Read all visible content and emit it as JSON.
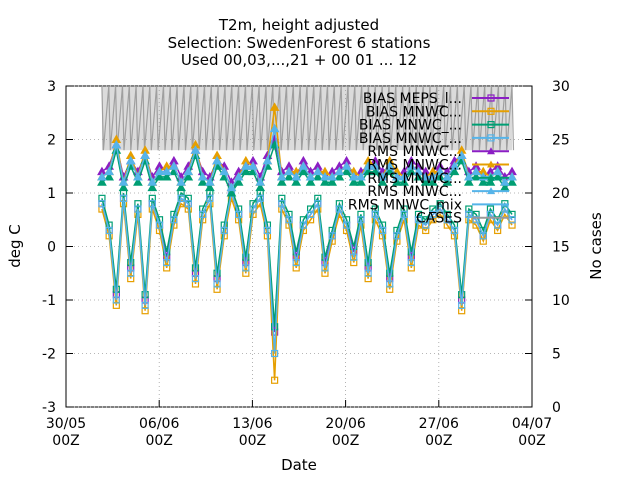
{
  "chart_data": {
    "type": "line",
    "title_lines": [
      "T2m, height adjusted",
      "Selection: SwedenForest      6 stations",
      "Used 00,03,...,21 + 00 01 ... 12"
    ],
    "xlabel": "Date",
    "ylabel": "deg C",
    "y2label": "No cases",
    "xlim": [
      0,
      35
    ],
    "ylim": [
      -3,
      3
    ],
    "y2lim": [
      0,
      30
    ],
    "yticks": [
      "3",
      "2",
      "1",
      "0",
      "-1",
      "-2",
      "-3"
    ],
    "y2ticks": [
      "30",
      "25",
      "20",
      "15",
      "10",
      "5",
      "0"
    ],
    "xticks": [
      {
        "pos": 0,
        "l1": "30/05",
        "l2": "00Z"
      },
      {
        "pos": 7,
        "l1": "06/06",
        "l2": "00Z"
      },
      {
        "pos": 14,
        "l1": "13/06",
        "l2": "00Z"
      },
      {
        "pos": 21,
        "l1": "20/06",
        "l2": "00Z"
      },
      {
        "pos": 28,
        "l1": "27/06",
        "l2": "00Z"
      },
      {
        "pos": 35,
        "l1": "04/07",
        "l2": "00Z"
      }
    ],
    "grid": true,
    "legend_position": "top-right",
    "series": [
      {
        "name": "BIAS MEPS_l...",
        "color": "#8b1ec4",
        "marker": "square",
        "rms": false,
        "values": [
          0.8,
          0.3,
          -0.9,
          0.9,
          -0.4,
          0.7,
          -1.0,
          0.8,
          0.4,
          -0.2,
          0.5,
          0.9,
          0.8,
          -0.5,
          0.6,
          0.9,
          -0.6,
          0.3,
          1.0,
          0.6,
          -0.3,
          0.7,
          0.9,
          0.3,
          -1.6,
          0.8,
          0.5,
          -0.2,
          0.4,
          0.6,
          0.8,
          -0.3,
          0.2,
          0.7,
          0.4,
          -0.1,
          0.5,
          -0.4,
          0.6,
          0.3,
          -0.6,
          0.2,
          0.6,
          -0.2,
          0.5,
          0.4,
          0.6,
          0.7,
          0.5,
          0.3,
          -1.0,
          0.6,
          0.5,
          0.2,
          0.6,
          0.4,
          0.7,
          0.5
        ]
      },
      {
        "name": "BIAS MNWC...",
        "color": "#e69f00",
        "marker": "square",
        "rms": false,
        "values": [
          0.7,
          0.2,
          -1.1,
          0.8,
          -0.6,
          0.6,
          -1.2,
          0.7,
          0.3,
          -0.4,
          0.4,
          0.8,
          0.7,
          -0.7,
          0.5,
          0.8,
          -0.8,
          0.2,
          0.9,
          0.5,
          -0.5,
          0.6,
          0.8,
          0.2,
          -2.5,
          0.7,
          0.4,
          -0.4,
          0.3,
          0.5,
          0.7,
          -0.5,
          0.1,
          0.6,
          0.3,
          -0.3,
          0.4,
          -0.6,
          0.5,
          0.2,
          -0.8,
          0.1,
          0.5,
          -0.4,
          0.4,
          0.3,
          0.5,
          0.6,
          0.4,
          0.2,
          -1.2,
          0.5,
          0.4,
          0.1,
          0.5,
          0.3,
          0.6,
          0.4
        ]
      },
      {
        "name": "BIAS MNWC_...",
        "color": "#009e73",
        "marker": "square",
        "rms": false,
        "values": [
          0.9,
          0.4,
          -0.8,
          1.0,
          -0.3,
          0.8,
          -0.9,
          0.9,
          0.5,
          -0.1,
          0.6,
          1.0,
          0.9,
          -0.4,
          0.7,
          1.0,
          -0.5,
          0.4,
          1.1,
          0.7,
          -0.2,
          0.8,
          1.0,
          0.4,
          -1.5,
          0.9,
          0.6,
          -0.1,
          0.5,
          0.7,
          0.9,
          -0.2,
          0.3,
          0.8,
          0.5,
          0.0,
          0.6,
          -0.3,
          0.7,
          0.4,
          -0.5,
          0.3,
          0.7,
          -0.1,
          0.6,
          0.5,
          0.7,
          0.8,
          0.6,
          0.4,
          -0.9,
          0.7,
          0.6,
          0.3,
          0.7,
          0.5,
          0.8,
          0.6
        ]
      },
      {
        "name": "BIAS MNWC_...",
        "color": "#56b4e9",
        "marker": "square",
        "rms": false,
        "values": [
          0.8,
          0.3,
          -1.0,
          0.9,
          -0.5,
          0.7,
          -1.1,
          0.8,
          0.4,
          -0.3,
          0.5,
          0.9,
          0.8,
          -0.6,
          0.6,
          0.9,
          -0.7,
          0.3,
          1.0,
          0.6,
          -0.4,
          0.7,
          0.9,
          0.3,
          -2.0,
          0.8,
          0.5,
          -0.3,
          0.4,
          0.6,
          0.8,
          -0.4,
          0.2,
          0.7,
          0.4,
          -0.2,
          0.5,
          -0.5,
          0.6,
          0.3,
          -0.7,
          0.2,
          0.6,
          -0.3,
          0.5,
          0.4,
          0.6,
          0.7,
          0.5,
          0.3,
          -1.1,
          0.6,
          0.5,
          0.2,
          0.6,
          0.4,
          0.7,
          0.5
        ]
      },
      {
        "name": "RMS MNWC...",
        "color": "#8b1ec4",
        "marker": "triangle",
        "rms": true,
        "values": [
          1.4,
          1.5,
          1.9,
          1.3,
          1.6,
          1.4,
          1.7,
          1.3,
          1.5,
          1.4,
          1.6,
          1.3,
          1.5,
          1.8,
          1.4,
          1.3,
          1.6,
          1.5,
          1.2,
          1.4,
          1.5,
          1.6,
          1.3,
          1.7,
          2.0,
          1.4,
          1.5,
          1.3,
          1.6,
          1.4,
          1.5,
          1.3,
          1.4,
          1.5,
          1.6,
          1.3,
          1.4,
          1.5,
          1.6,
          1.4,
          1.5,
          1.3,
          1.4,
          1.6,
          1.5,
          1.4,
          1.3,
          1.5,
          1.4,
          1.6,
          1.7,
          1.4,
          1.5,
          1.3,
          1.4,
          1.5,
          1.3,
          1.4
        ]
      },
      {
        "name": "RMS MNWC...",
        "color": "#e69f00",
        "marker": "triangle",
        "rms": true,
        "values": [
          1.3,
          1.4,
          2.0,
          1.2,
          1.7,
          1.3,
          1.8,
          1.2,
          1.4,
          1.5,
          1.5,
          1.2,
          1.4,
          1.9,
          1.3,
          1.2,
          1.7,
          1.4,
          1.1,
          1.3,
          1.6,
          1.5,
          1.2,
          1.6,
          2.6,
          1.3,
          1.4,
          1.4,
          1.5,
          1.3,
          1.4,
          1.4,
          1.3,
          1.4,
          1.5,
          1.4,
          1.3,
          1.6,
          1.5,
          1.3,
          1.6,
          1.4,
          1.3,
          1.5,
          1.4,
          1.3,
          1.4,
          1.4,
          1.3,
          1.5,
          1.8,
          1.3,
          1.4,
          1.4,
          1.3,
          1.4,
          1.2,
          1.3
        ]
      },
      {
        "name": "RMS MNWC...",
        "color": "#009e73",
        "marker": "triangle",
        "rms": true,
        "values": [
          1.2,
          1.3,
          1.8,
          1.1,
          1.5,
          1.2,
          1.6,
          1.1,
          1.3,
          1.3,
          1.4,
          1.1,
          1.3,
          1.7,
          1.2,
          1.1,
          1.5,
          1.3,
          1.0,
          1.2,
          1.4,
          1.4,
          1.1,
          1.5,
          1.9,
          1.2,
          1.3,
          1.2,
          1.4,
          1.2,
          1.3,
          1.2,
          1.2,
          1.3,
          1.4,
          1.2,
          1.2,
          1.4,
          1.4,
          1.2,
          1.4,
          1.2,
          1.2,
          1.4,
          1.3,
          1.2,
          1.2,
          1.3,
          1.2,
          1.4,
          1.6,
          1.2,
          1.3,
          1.2,
          1.2,
          1.3,
          1.1,
          1.2
        ]
      },
      {
        "name": "RMS MNWC...",
        "color": "#56b4e9",
        "marker": "triangle",
        "rms": true,
        "values": [
          1.3,
          1.4,
          1.9,
          1.2,
          1.6,
          1.3,
          1.7,
          1.2,
          1.4,
          1.4,
          1.5,
          1.2,
          1.4,
          1.8,
          1.3,
          1.2,
          1.6,
          1.4,
          1.1,
          1.3,
          1.5,
          1.5,
          1.2,
          1.6,
          2.2,
          1.3,
          1.4,
          1.3,
          1.5,
          1.3,
          1.4,
          1.3,
          1.3,
          1.4,
          1.5,
          1.3,
          1.3,
          1.5,
          1.5,
          1.3,
          1.5,
          1.3,
          1.3,
          1.5,
          1.4,
          1.3,
          1.3,
          1.4,
          1.3,
          1.5,
          1.7,
          1.3,
          1.4,
          1.3,
          1.3,
          1.4,
          1.2,
          1.3
        ]
      }
    ],
    "legend": [
      {
        "label": "BIAS MEPS_l...",
        "color": "#8b1ec4",
        "marker": "square"
      },
      {
        "label": "BIAS MNWC...",
        "color": "#e69f00",
        "marker": "square"
      },
      {
        "label": "BIAS MNWC_...",
        "color": "#009e73",
        "marker": "square"
      },
      {
        "label": "BIAS MNWC_...",
        "color": "#56b4e9",
        "marker": "square"
      },
      {
        "label": "RMS MNWC...",
        "color": "#8b1ec4",
        "marker": "triangle"
      },
      {
        "label": "RMS MNWC...",
        "color": "#e69f00",
        "marker": "triangle"
      },
      {
        "label": "RMS MNWC...",
        "color": "#009e73",
        "marker": "triangle"
      },
      {
        "label": "RMS MNWC...",
        "color": "#56b4e9",
        "marker": "triangle"
      },
      {
        "label": "RMS MNWC_mix",
        "color": "#56b4e9",
        "marker": "none"
      },
      {
        "label": "CASES",
        "color": "#999999",
        "marker": "none"
      }
    ],
    "x_start": 2.7,
    "x_end": 33.5,
    "cases": {
      "name": "CASES",
      "color": "#999999",
      "value": 30,
      "note_low": "17"
    }
  }
}
